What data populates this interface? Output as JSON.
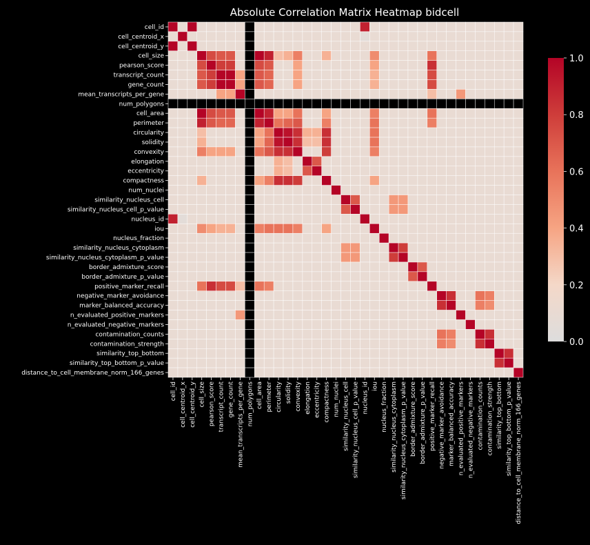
{
  "chart_data": {
    "type": "heatmap",
    "title": "Absolute Correlation Matrix Heatmap bidcell",
    "xlabel": "",
    "ylabel": "",
    "labels": [
      "cell_id",
      "cell_centroid_x",
      "cell_centroid_y",
      "cell_size",
      "pearson_score",
      "transcript_count",
      "gene_count",
      "mean_transcripts_per_gene",
      "num_polygons",
      "cell_area",
      "perimeter",
      "circularity",
      "solidity",
      "convexity",
      "elongation",
      "eccentricity",
      "compactness",
      "num_nuclei",
      "similarity_nucleus_cell",
      "similarity_nucleus_cell_p_value",
      "nucleus_id",
      "iou",
      "nucleus_fraction",
      "similarity_nucleus_cytoplasm",
      "similarity_nucleus_cytoplasm_p_value",
      "border_admixture_score",
      "border_admixture_p_value",
      "positive_marker_recall",
      "negative_marker_avoidance",
      "marker_balanced_accuracy",
      "n_evaluated_positive_markers",
      "n_evaluated_negative_markers",
      "contamination_counts",
      "contamination_strength",
      "similarity_top_bottom",
      "similarity_top_bottom_p_value",
      "distance_to_cell_membrane_norm_166_genes"
    ],
    "background_value": 0.1,
    "missing_index": 8,
    "cells": [
      [
        0,
        2,
        1.0
      ],
      [
        0,
        20,
        0.9
      ],
      [
        1,
        20,
        0.05
      ],
      [
        3,
        4,
        0.75
      ],
      [
        3,
        5,
        0.7
      ],
      [
        3,
        6,
        0.7
      ],
      [
        3,
        9,
        1.0
      ],
      [
        3,
        10,
        0.9
      ],
      [
        3,
        11,
        0.3
      ],
      [
        3,
        12,
        0.35
      ],
      [
        3,
        13,
        0.55
      ],
      [
        3,
        16,
        0.35
      ],
      [
        3,
        21,
        0.5
      ],
      [
        3,
        27,
        0.6
      ],
      [
        4,
        5,
        0.8
      ],
      [
        4,
        6,
        0.8
      ],
      [
        4,
        9,
        0.75
      ],
      [
        4,
        10,
        0.7
      ],
      [
        4,
        13,
        0.4
      ],
      [
        4,
        21,
        0.4
      ],
      [
        4,
        27,
        0.85
      ],
      [
        5,
        6,
        1.0
      ],
      [
        5,
        7,
        0.4
      ],
      [
        5,
        9,
        0.7
      ],
      [
        5,
        10,
        0.65
      ],
      [
        5,
        13,
        0.4
      ],
      [
        5,
        21,
        0.35
      ],
      [
        5,
        27,
        0.75
      ],
      [
        6,
        7,
        0.4
      ],
      [
        6,
        9,
        0.7
      ],
      [
        6,
        10,
        0.65
      ],
      [
        6,
        13,
        0.4
      ],
      [
        6,
        21,
        0.35
      ],
      [
        6,
        27,
        0.75
      ],
      [
        7,
        27,
        0.3
      ],
      [
        7,
        30,
        0.45
      ],
      [
        9,
        10,
        0.9
      ],
      [
        9,
        11,
        0.4
      ],
      [
        9,
        12,
        0.4
      ],
      [
        9,
        13,
        0.6
      ],
      [
        9,
        16,
        0.4
      ],
      [
        9,
        21,
        0.55
      ],
      [
        9,
        27,
        0.6
      ],
      [
        10,
        11,
        0.6
      ],
      [
        10,
        12,
        0.65
      ],
      [
        10,
        13,
        0.7
      ],
      [
        10,
        16,
        0.55
      ],
      [
        10,
        21,
        0.6
      ],
      [
        10,
        27,
        0.55
      ],
      [
        11,
        12,
        0.95
      ],
      [
        11,
        13,
        0.85
      ],
      [
        11,
        14,
        0.35
      ],
      [
        11,
        15,
        0.35
      ],
      [
        11,
        16,
        0.85
      ],
      [
        11,
        21,
        0.6
      ],
      [
        12,
        13,
        0.85
      ],
      [
        12,
        14,
        0.3
      ],
      [
        12,
        15,
        0.3
      ],
      [
        12,
        16,
        0.85
      ],
      [
        12,
        21,
        0.6
      ],
      [
        13,
        16,
        0.8
      ],
      [
        13,
        21,
        0.55
      ],
      [
        14,
        15,
        0.7
      ],
      [
        16,
        21,
        0.4
      ],
      [
        18,
        19,
        0.7
      ],
      [
        18,
        23,
        0.45
      ],
      [
        18,
        24,
        0.45
      ],
      [
        19,
        23,
        0.45
      ],
      [
        19,
        24,
        0.45
      ],
      [
        23,
        24,
        0.8
      ],
      [
        25,
        26,
        0.7
      ],
      [
        28,
        29,
        0.85
      ],
      [
        28,
        32,
        0.6
      ],
      [
        28,
        33,
        0.55
      ],
      [
        29,
        32,
        0.55
      ],
      [
        29,
        33,
        0.5
      ],
      [
        32,
        33,
        0.85
      ],
      [
        34,
        35,
        0.85
      ]
    ]
  }
}
